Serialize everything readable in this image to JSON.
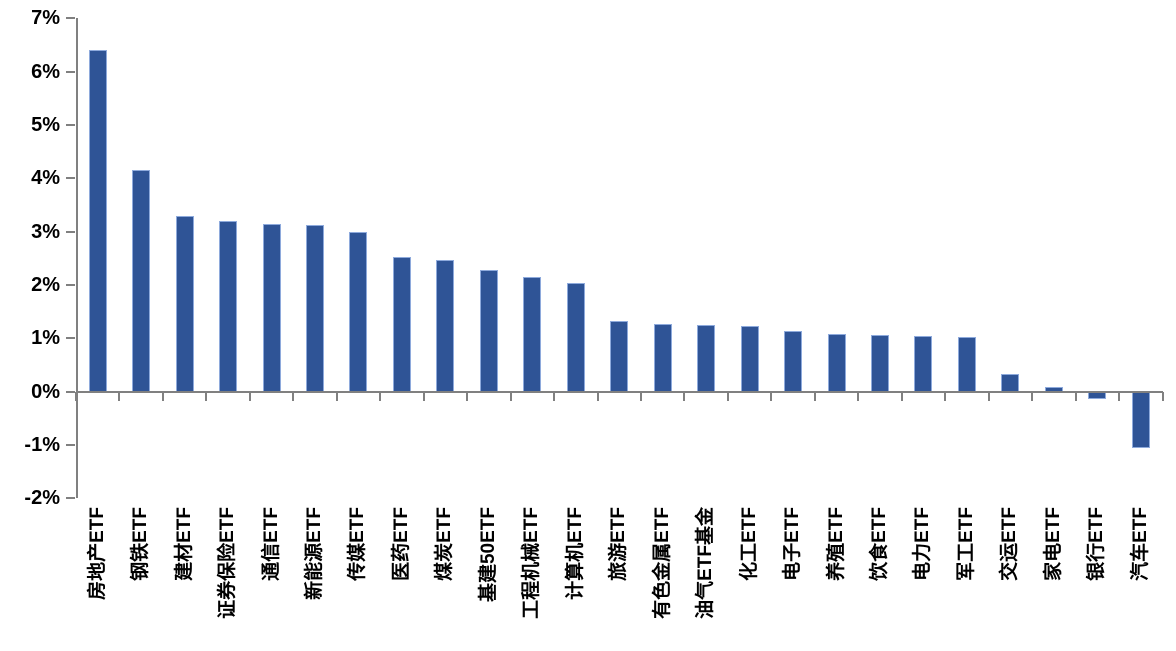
{
  "chart_data": {
    "type": "bar",
    "title": "",
    "xlabel": "",
    "ylabel": "",
    "categories": [
      "房地产ETF",
      "钢铁ETF",
      "建材ETF",
      "证券保险ETF",
      "通信ETF",
      "新能源ETF",
      "传媒ETF",
      "医药ETF",
      "煤炭ETF",
      "基建50ETF",
      "工程机械ETF",
      "计算机ETF",
      "旅游ETF",
      "有色金属ETF",
      "油气ETF基金",
      "化工ETF",
      "电子ETF",
      "养殖ETF",
      "饮食ETF",
      "电力ETF",
      "军工ETF",
      "交运ETF",
      "家电ETF",
      "银行ETF",
      "汽车ETF"
    ],
    "values": [
      6.41,
      4.15,
      3.3,
      3.21,
      3.15,
      3.12,
      3.0,
      2.53,
      2.47,
      2.28,
      2.16,
      2.03,
      1.33,
      1.27,
      1.25,
      1.24,
      1.13,
      1.08,
      1.06,
      1.05,
      1.03,
      0.33,
      0.09,
      -0.14,
      -1.05
    ],
    "ylim": [
      -2,
      7
    ],
    "ytick_step": 1,
    "ytick_labels": [
      "7%",
      "6%",
      "5%",
      "4%",
      "3%",
      "2%",
      "1%",
      "0%",
      "-1%",
      "-2%"
    ],
    "grid": false,
    "legend": null,
    "colors": {
      "bar_fill": "#2F5496",
      "bar_border": "#8EAADC",
      "axis": "#808080",
      "text": "#000000",
      "background": "#FFFFFF"
    }
  }
}
